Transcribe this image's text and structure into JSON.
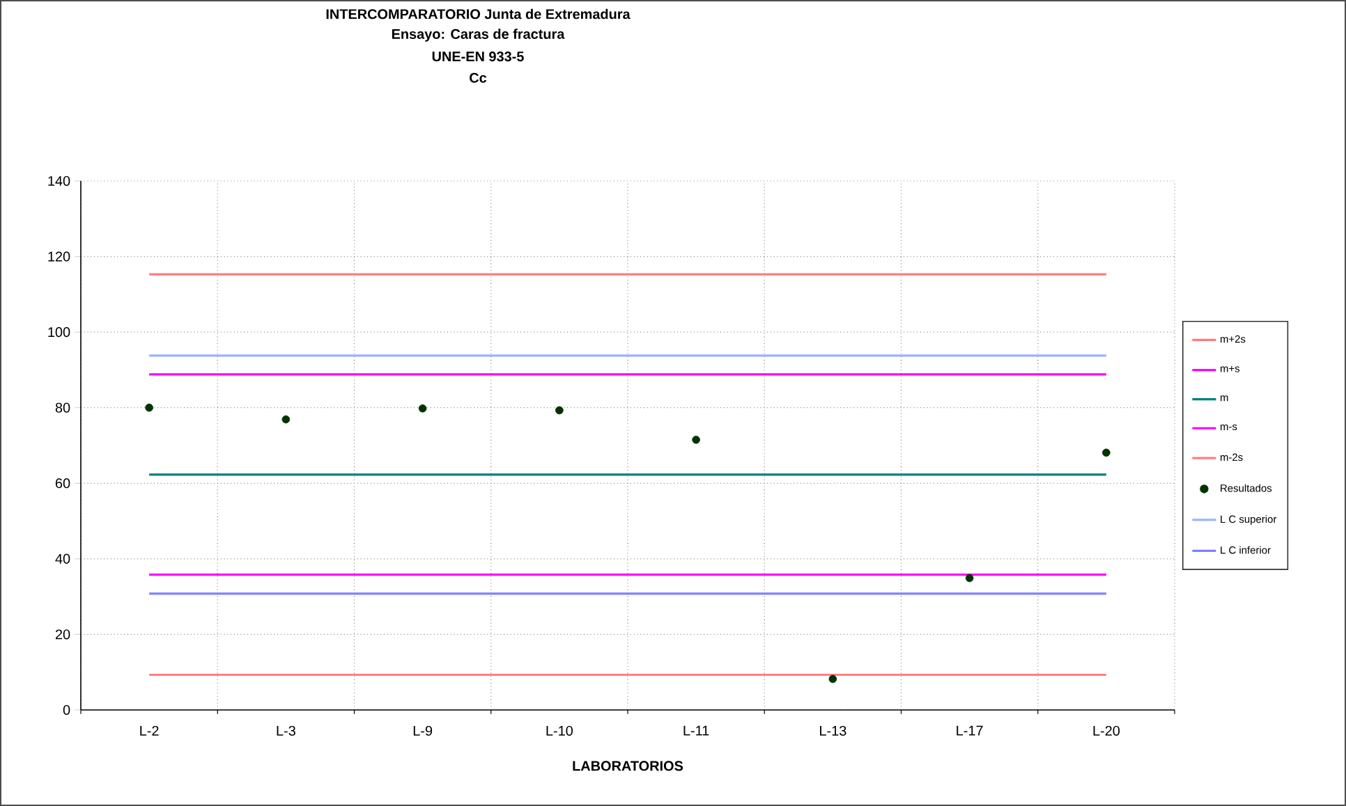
{
  "chart_data": {
    "type": "line",
    "title": "INTERCOMPARATORIO Junta de Extremadura",
    "subtitle": "Ensayo: Caras de fractura",
    "annotations": [
      "UNE-EN 933-5",
      "Cc"
    ],
    "xlabel": "LABORATORIOS",
    "categories": [
      "L-2",
      "L-3",
      "L-9",
      "L-10",
      "L-11",
      "L-13",
      "L-17",
      "L-20"
    ],
    "series": [
      {
        "name": "m+2s",
        "color": "#ff7b7b",
        "values": [
          115.3,
          115.3,
          115.3,
          115.3,
          115.3,
          115.3,
          115.3,
          115.3
        ]
      },
      {
        "name": "m+s",
        "color": "#ff00ff",
        "values": [
          88.8,
          88.8,
          88.8,
          88.8,
          88.8,
          88.8,
          88.8,
          88.8
        ]
      },
      {
        "name": "m",
        "color": "#008080",
        "values": [
          62.3,
          62.3,
          62.3,
          62.3,
          62.3,
          62.3,
          62.3,
          62.3
        ]
      },
      {
        "name": "m-s",
        "color": "#ff00ff",
        "values": [
          35.8,
          35.8,
          35.8,
          35.8,
          35.8,
          35.8,
          35.8,
          35.8
        ]
      },
      {
        "name": "m-2s",
        "color": "#ff8080",
        "values": [
          9.3,
          9.3,
          9.3,
          9.3,
          9.3,
          9.3,
          9.3,
          9.3
        ]
      },
      {
        "name": "Resultados",
        "type": "scatter",
        "marker": "circle",
        "color": "#003300",
        "values": [
          80.0,
          76.9,
          79.8,
          79.3,
          71.5,
          8.2,
          34.9,
          68.1
        ]
      },
      {
        "name": "L C superior",
        "color": "#99b3ff",
        "values": [
          93.8,
          93.8,
          93.8,
          93.8,
          93.8,
          93.8,
          93.8,
          93.8
        ]
      },
      {
        "name": "L C inferior",
        "color": "#8080ff",
        "values": [
          30.8,
          30.8,
          30.8,
          30.8,
          30.8,
          30.8,
          30.8,
          30.8
        ]
      }
    ],
    "ylim": [
      0,
      140
    ],
    "yticks": [
      0,
      20,
      40,
      60,
      80,
      100,
      120,
      140
    ],
    "grid": true,
    "legend": "right"
  }
}
